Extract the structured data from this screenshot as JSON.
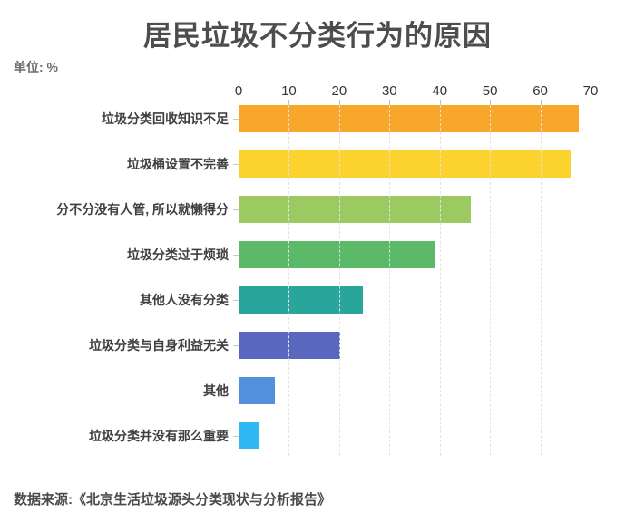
{
  "title": "居民垃圾不分类行为的原因",
  "unit_label": "单位: %",
  "source": "数据来源:《北京生活垃圾源头分类现状与分析报告》",
  "colors": {
    "title_text": "#4d4d4f",
    "label_text": "#3f3f3f",
    "axis_line": "#c9c9c9",
    "gridline": "#e2e2e2",
    "background": "#ffffff"
  },
  "chart_data": {
    "type": "bar",
    "orientation": "horizontal",
    "title": "居民垃圾不分类行为的原因",
    "unit": "%",
    "categories": [
      "垃圾分类回收知识不足",
      "垃圾桶设置不完善",
      "分不分没有人管, 所以就懒得分",
      "垃圾分类过于烦琐",
      "其他人没有分类",
      "垃圾分类与自身利益无关",
      "其他",
      "垃圾分类并没有那么重要"
    ],
    "values": [
      67.5,
      66,
      46,
      39,
      24.5,
      20,
      7,
      4
    ],
    "bar_colors": [
      "#F9A72B",
      "#FDD32F",
      "#9BCA63",
      "#5CB968",
      "#29A69B",
      "#5A67BE",
      "#5290DD",
      "#2EB8F2"
    ],
    "xlabel": "",
    "ylabel": "",
    "xlim": [
      0,
      70
    ],
    "x_ticks": [
      0,
      10,
      20,
      30,
      40,
      50,
      60,
      70
    ],
    "grid": "vertical-dashed",
    "legend": "none",
    "source": "数据来源:《北京生活垃圾源头分类现状与分析报告》"
  }
}
